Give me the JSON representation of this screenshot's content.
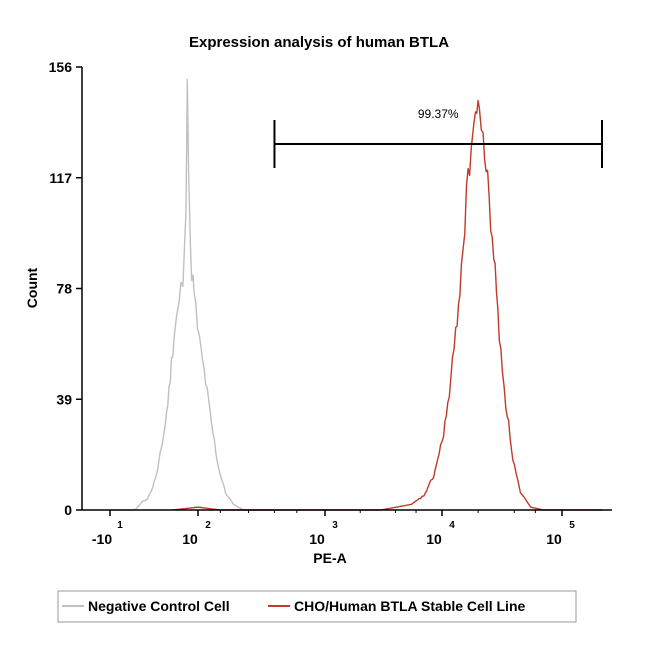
{
  "chart_data": {
    "type": "histogram",
    "title": "Expression analysis of human BTLA",
    "xlabel": "PE-A",
    "ylabel": "Count",
    "x_scale": "log (biexponential)",
    "ylim": [
      0,
      156
    ],
    "y_ticks": [
      "0",
      "39",
      "78",
      "117",
      "156"
    ],
    "x_ticks": [
      {
        "base": "-10",
        "exp": "1"
      },
      {
        "base": "10",
        "exp": "2"
      },
      {
        "base": "10",
        "exp": "3"
      },
      {
        "base": "10",
        "exp": "4"
      },
      {
        "base": "10",
        "exp": "5"
      }
    ],
    "gate": {
      "label": "99.37%",
      "x_start": 400,
      "x_end": 200000
    },
    "legend": [
      "Negative Control Cell",
      "CHO/Human BTLA Stable Cell Line"
    ],
    "series": [
      {
        "name": "Negative Control Cell",
        "color": "#c0c0c0",
        "points": [
          [
            -10,
            0
          ],
          [
            0,
            0
          ],
          [
            12,
            3
          ],
          [
            20,
            4
          ],
          [
            28,
            8
          ],
          [
            36,
            14
          ],
          [
            42,
            22
          ],
          [
            48,
            30
          ],
          [
            54,
            42
          ],
          [
            58,
            52
          ],
          [
            62,
            62
          ],
          [
            66,
            68
          ],
          [
            70,
            72
          ],
          [
            73,
            78
          ],
          [
            76,
            80
          ],
          [
            79,
            92
          ],
          [
            81,
            110
          ],
          [
            83,
            156
          ],
          [
            85,
            120
          ],
          [
            88,
            90
          ],
          [
            94,
            75
          ],
          [
            102,
            60
          ],
          [
            115,
            45
          ],
          [
            128,
            30
          ],
          [
            145,
            15
          ],
          [
            165,
            6
          ],
          [
            190,
            2
          ],
          [
            230,
            0
          ],
          [
            400,
            0
          ]
        ]
      },
      {
        "name": "CHO/Human BTLA Stable Cell Line",
        "color": "#c0392b",
        "points": [
          [
            60,
            0
          ],
          [
            100,
            1
          ],
          [
            150,
            0
          ],
          [
            3000,
            0
          ],
          [
            5500,
            2
          ],
          [
            7000,
            5
          ],
          [
            8500,
            12
          ],
          [
            10000,
            24
          ],
          [
            11500,
            40
          ],
          [
            13000,
            62
          ],
          [
            14500,
            85
          ],
          [
            16000,
            110
          ],
          [
            17500,
            128
          ],
          [
            19000,
            140
          ],
          [
            20500,
            140
          ],
          [
            22000,
            132
          ],
          [
            24000,
            115
          ],
          [
            27000,
            90
          ],
          [
            30000,
            62
          ],
          [
            34000,
            38
          ],
          [
            39000,
            18
          ],
          [
            45000,
            6
          ],
          [
            55000,
            1
          ],
          [
            70000,
            0
          ],
          [
            200000,
            0
          ]
        ]
      }
    ]
  }
}
